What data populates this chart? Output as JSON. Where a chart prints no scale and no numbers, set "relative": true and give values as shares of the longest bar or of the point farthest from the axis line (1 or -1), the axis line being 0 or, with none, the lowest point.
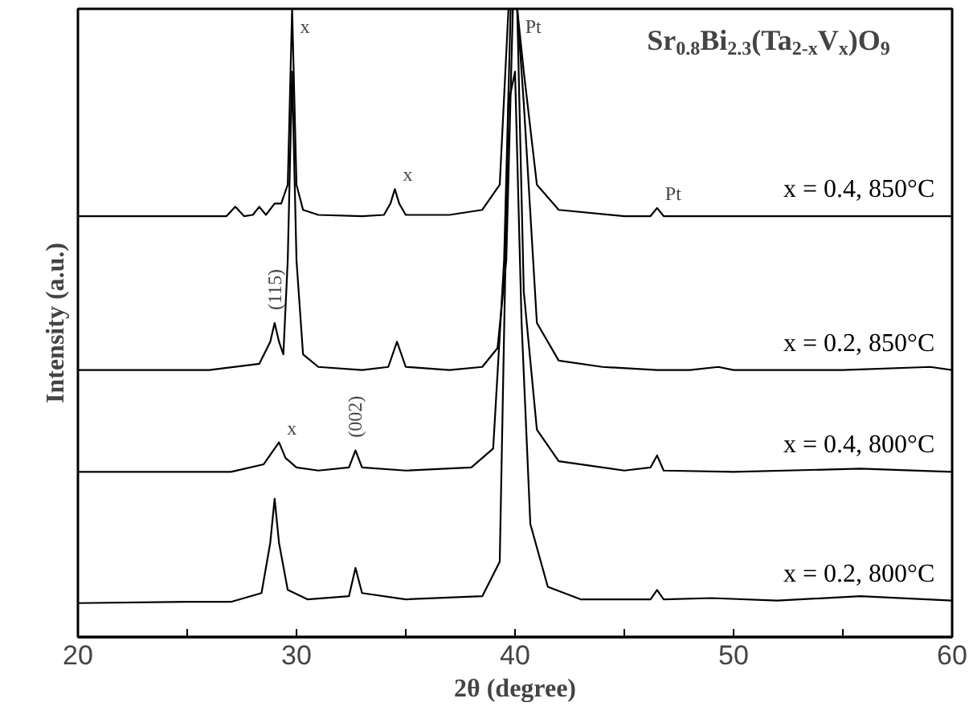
{
  "chart_data": {
    "type": "line",
    "relative": true,
    "title": "Sr$_{0.8}$Bi$_{2.3}$(Ta$_{2-x}$V$_{x}$)O$_{9}$",
    "xlabel": "2θ (degree)",
    "ylabel": "Intensity (a.u.)",
    "xlim": [
      20,
      60
    ],
    "xticks": [
      20,
      {
        "value": 25,
        "label": null
      },
      30,
      {
        "value": 35,
        "label": null
      },
      40,
      {
        "value": 45,
        "label": null
      },
      50,
      {
        "value": 55,
        "label": null
      },
      60
    ],
    "grid": false,
    "legend": false,
    "marker": "none",
    "line_style": "solid",
    "series": [
      {
        "name": "x = 0.4, 850°C",
        "color": "#000000",
        "x": [
          20,
          24,
          26.8,
          27.2,
          27.6,
          28.0,
          28.3,
          28.6,
          29.0,
          29.3,
          29.6,
          29.8,
          30.0,
          30.3,
          31,
          33,
          34.0,
          34.3,
          34.5,
          34.7,
          35,
          37,
          38.5,
          39.3,
          39.7,
          39.9,
          40.1,
          40.4,
          41,
          42,
          45,
          46.2,
          46.5,
          46.8,
          50,
          55,
          60
        ],
        "values": [
          0.67,
          0.67,
          0.67,
          0.685,
          0.67,
          0.672,
          0.685,
          0.672,
          0.69,
          0.69,
          0.72,
          1.0,
          0.72,
          0.68,
          0.672,
          0.67,
          0.672,
          0.69,
          0.713,
          0.69,
          0.672,
          0.672,
          0.68,
          0.72,
          1.0,
          1.0,
          1.0,
          0.9,
          0.72,
          0.68,
          0.67,
          0.67,
          0.683,
          0.67,
          0.67,
          0.67,
          0.67
        ]
      },
      {
        "name": "x = 0.2, 850°C",
        "color": "#000000",
        "x": [
          20,
          26,
          28.3,
          28.8,
          29.0,
          29.2,
          29.4,
          29.6,
          29.8,
          30.0,
          30.3,
          31,
          33,
          34.2,
          34.6,
          35.0,
          37,
          38.5,
          39.2,
          39.6,
          39.9,
          40.1,
          40.4,
          41,
          42,
          44,
          46.5,
          48,
          49.3,
          50,
          55,
          59,
          60
        ],
        "values": [
          0.425,
          0.425,
          0.435,
          0.47,
          0.5,
          0.47,
          0.45,
          0.6,
          0.9,
          0.6,
          0.45,
          0.43,
          0.425,
          0.43,
          0.47,
          0.43,
          0.425,
          0.43,
          0.46,
          0.6,
          1.0,
          1.0,
          0.85,
          0.5,
          0.44,
          0.43,
          0.425,
          0.425,
          0.43,
          0.425,
          0.425,
          0.43,
          0.425
        ]
      },
      {
        "name": "x = 0.4, 800°C",
        "color": "#000000",
        "x": [
          20,
          27,
          28.5,
          29.0,
          29.2,
          29.5,
          30,
          31,
          32.4,
          32.7,
          33.0,
          35,
          38,
          39.0,
          39.5,
          39.8,
          40.1,
          40.4,
          41,
          42,
          45,
          46.2,
          46.5,
          46.8,
          50,
          55.8,
          60
        ],
        "values": [
          0.263,
          0.263,
          0.275,
          0.3,
          0.31,
          0.285,
          0.27,
          0.265,
          0.27,
          0.297,
          0.27,
          0.265,
          0.27,
          0.3,
          0.6,
          1.0,
          1.0,
          0.55,
          0.33,
          0.28,
          0.265,
          0.27,
          0.289,
          0.265,
          0.263,
          0.268,
          0.263
        ]
      },
      {
        "name": "x = 0.2, 800°C",
        "color": "#000000",
        "x": [
          20,
          25,
          27,
          28.4,
          28.8,
          29.0,
          29.2,
          29.6,
          30.5,
          32.4,
          32.7,
          33.0,
          35,
          38.5,
          39.3,
          39.7,
          40.0,
          40.3,
          40.7,
          41.5,
          43,
          46.2,
          46.5,
          46.8,
          49,
          52,
          55.8,
          60
        ],
        "values": [
          0.054,
          0.056,
          0.056,
          0.07,
          0.15,
          0.22,
          0.15,
          0.075,
          0.06,
          0.065,
          0.11,
          0.07,
          0.06,
          0.065,
          0.12,
          0.85,
          0.9,
          0.5,
          0.18,
          0.08,
          0.06,
          0.06,
          0.075,
          0.06,
          0.062,
          0.058,
          0.065,
          0.058
        ]
      }
    ],
    "annotations": [
      {
        "text": "x",
        "x": 29.8,
        "y": 1.0
      },
      {
        "text": "x",
        "x": 34.5,
        "y": 0.713
      },
      {
        "text": "Pt",
        "x": 40.1,
        "y": 1.0
      },
      {
        "text": "Pt",
        "x": 46.5,
        "y": 0.683
      },
      {
        "text": "(115)",
        "x": 29.0,
        "y": 0.5
      },
      {
        "text": "(002)",
        "x": 32.7,
        "y": 0.297
      },
      {
        "text": "x",
        "x": 29.2,
        "y": 0.31
      }
    ]
  }
}
